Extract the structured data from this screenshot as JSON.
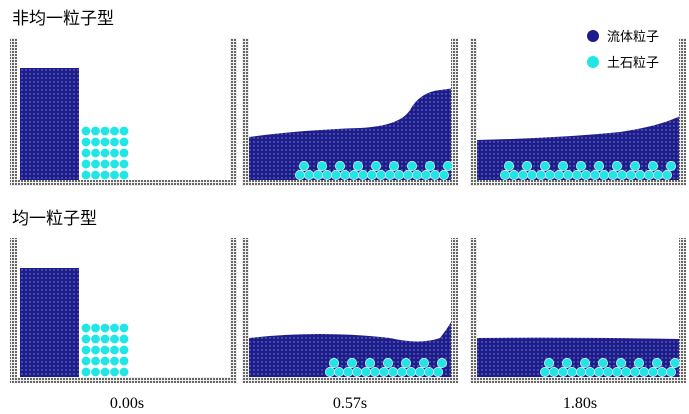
{
  "rows": [
    {
      "title": "非均一粒子型"
    },
    {
      "title": "均一粒子型"
    }
  ],
  "legend": {
    "fluid": "流体粒子",
    "sediment": "土石粒子"
  },
  "times": [
    "0.00s",
    "0.57s",
    "1.80s"
  ]
}
